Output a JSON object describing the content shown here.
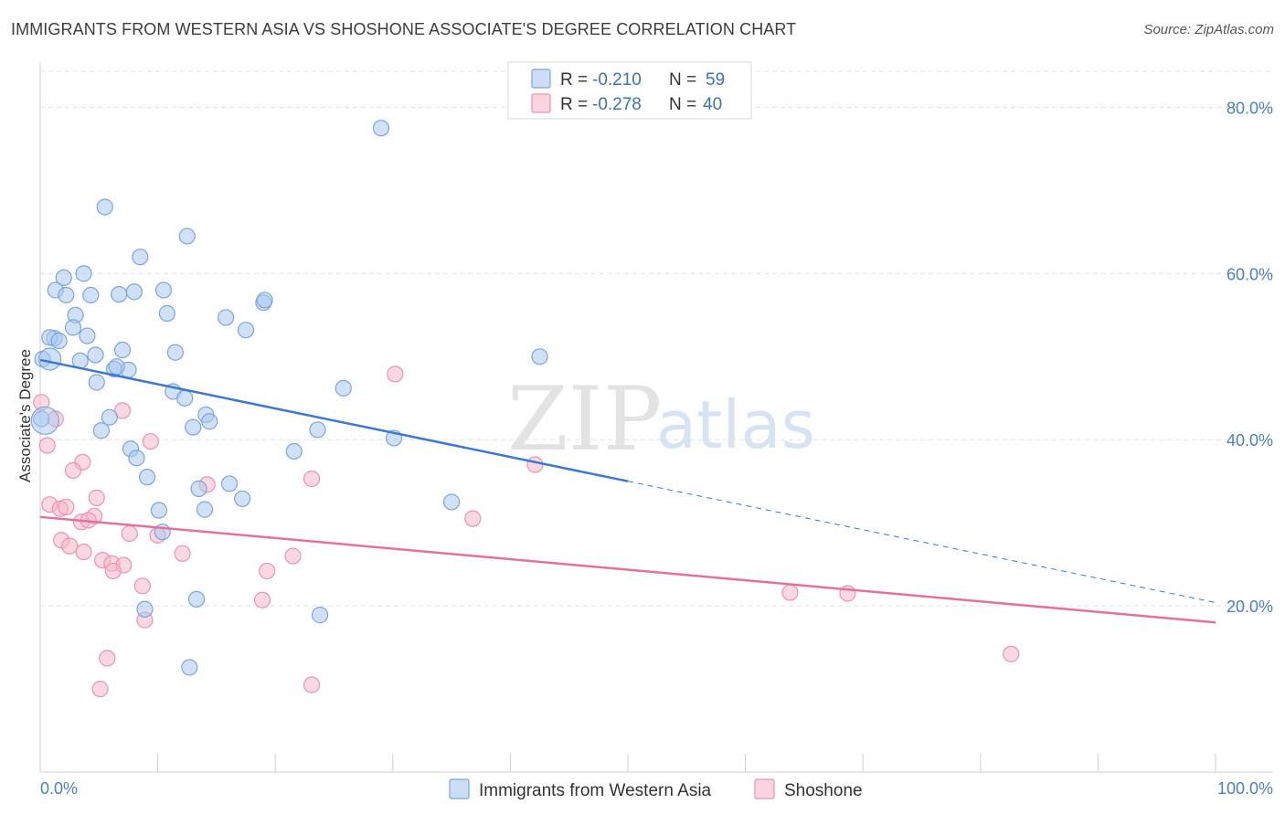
{
  "title": "IMMIGRANTS FROM WESTERN ASIA VS SHOSHONE ASSOCIATE'S DEGREE CORRELATION CHART",
  "source": "Source: ZipAtlas.com",
  "watermark": {
    "zip": "ZIP",
    "atlas": "atlas"
  },
  "colors": {
    "blue_fill": "#a9c8ef",
    "blue_stroke": "#7aa6dc",
    "blue_line": "#3b78d0",
    "pink_fill": "#f6b8cb",
    "pink_stroke": "#ec93ae",
    "pink_line": "#e4719a",
    "grid": "#e2e2e2",
    "tick_text": "#4a7fcb"
  },
  "legend": {
    "rows": [
      {
        "r_label": "R =",
        "r_value": "-0.210",
        "n_label": "N =",
        "n_value": "59"
      },
      {
        "r_label": "R =",
        "r_value": "-0.278",
        "n_label": "N =",
        "n_value": "40"
      }
    ]
  },
  "chart_data": {
    "type": "scatter",
    "xlabel": "",
    "ylabel": "Associate's Degree",
    "xlim": [
      0,
      100
    ],
    "ylim": [
      0,
      85
    ],
    "x_tick_labels": {
      "min": "0.0%",
      "max": "100.0%"
    },
    "y_ticks": [
      {
        "value": 20,
        "label": "20.0%"
      },
      {
        "value": 40,
        "label": "40.0%"
      },
      {
        "value": 60,
        "label": "60.0%"
      },
      {
        "value": 80,
        "label": "80.0%"
      }
    ],
    "grid": true,
    "legend_position": "top-center",
    "series": [
      {
        "name": "Immigrants from Western Asia",
        "color": "#a9c8ef",
        "r": -0.21,
        "n": 59,
        "trend": {
          "x": [
            0,
            50
          ],
          "y": [
            49.6,
            35.0
          ],
          "extend_to_x": 100,
          "extend_y": 20.4
        },
        "points": [
          [
            29,
            77.5
          ],
          [
            5.5,
            68
          ],
          [
            12.5,
            64.5
          ],
          [
            8.5,
            62
          ],
          [
            2,
            59.5
          ],
          [
            3.7,
            60
          ],
          [
            1.3,
            58
          ],
          [
            2.2,
            57.4
          ],
          [
            4.3,
            57.4
          ],
          [
            6.7,
            57.5
          ],
          [
            8,
            57.8
          ],
          [
            10.5,
            58
          ],
          [
            19,
            56.5
          ],
          [
            19.1,
            56.8
          ],
          [
            10.8,
            55.2
          ],
          [
            3,
            55
          ],
          [
            15.8,
            54.7
          ],
          [
            2.8,
            53.5
          ],
          [
            17.5,
            53.2
          ],
          [
            4,
            52.5
          ],
          [
            1.2,
            52.2
          ],
          [
            0.8,
            52.3
          ],
          [
            1.6,
            51.9
          ],
          [
            7,
            50.8
          ],
          [
            11.5,
            50.5
          ],
          [
            4.7,
            50.2
          ],
          [
            3.4,
            49.5
          ],
          [
            0.2,
            49.7
          ],
          [
            42.5,
            50
          ],
          [
            6.3,
            48.5
          ],
          [
            7.5,
            48.4
          ],
          [
            6.5,
            48.8
          ],
          [
            4.8,
            46.9
          ],
          [
            25.8,
            46.2
          ],
          [
            11.3,
            45.8
          ],
          [
            12.3,
            45
          ],
          [
            0.1,
            42.5
          ],
          [
            5.9,
            42.7
          ],
          [
            14.1,
            43
          ],
          [
            14.4,
            42.2
          ],
          [
            13,
            41.5
          ],
          [
            5.2,
            41.1
          ],
          [
            23.6,
            41.2
          ],
          [
            30.1,
            40.2
          ],
          [
            7.7,
            38.9
          ],
          [
            21.6,
            38.6
          ],
          [
            8.2,
            37.8
          ],
          [
            9.1,
            35.5
          ],
          [
            16.1,
            34.7
          ],
          [
            13.5,
            34.1
          ],
          [
            17.2,
            32.9
          ],
          [
            35,
            32.5
          ],
          [
            10.1,
            31.5
          ],
          [
            14,
            31.6
          ],
          [
            10.4,
            28.9
          ],
          [
            8.9,
            19.6
          ],
          [
            13.3,
            20.8
          ],
          [
            23.8,
            18.9
          ],
          [
            12.7,
            12.6
          ]
        ]
      },
      {
        "name": "Shoshone",
        "color": "#f6b8cb",
        "r": -0.278,
        "n": 40,
        "trend": {
          "x": [
            0,
            100
          ],
          "y": [
            30.7,
            18.0
          ]
        },
        "points": [
          [
            0.1,
            44.5
          ],
          [
            1.3,
            42.5
          ],
          [
            30.2,
            47.9
          ],
          [
            7,
            43.5
          ],
          [
            9.4,
            39.8
          ],
          [
            0.6,
            39.3
          ],
          [
            3.6,
            37.3
          ],
          [
            2.8,
            36.3
          ],
          [
            42.1,
            37
          ],
          [
            23.1,
            35.3
          ],
          [
            14.2,
            34.6
          ],
          [
            4.8,
            33
          ],
          [
            0.8,
            32.2
          ],
          [
            1.7,
            31.7
          ],
          [
            2.2,
            31.9
          ],
          [
            4.6,
            30.8
          ],
          [
            3.5,
            30.1
          ],
          [
            4.1,
            30.3
          ],
          [
            36.8,
            30.5
          ],
          [
            7.6,
            28.7
          ],
          [
            10,
            28.5
          ],
          [
            1.8,
            27.9
          ],
          [
            2.5,
            27.2
          ],
          [
            3.7,
            26.5
          ],
          [
            12.1,
            26.3
          ],
          [
            21.5,
            26
          ],
          [
            5.3,
            25.5
          ],
          [
            6.1,
            25.1
          ],
          [
            7.1,
            24.9
          ],
          [
            6.2,
            24.2
          ],
          [
            19.3,
            24.2
          ],
          [
            8.7,
            22.4
          ],
          [
            63.8,
            21.6
          ],
          [
            68.7,
            21.5
          ],
          [
            18.9,
            20.7
          ],
          [
            8.9,
            18.3
          ],
          [
            82.6,
            14.2
          ],
          [
            5.7,
            13.7
          ],
          [
            23.1,
            10.5
          ],
          [
            5.1,
            10
          ]
        ]
      }
    ]
  }
}
